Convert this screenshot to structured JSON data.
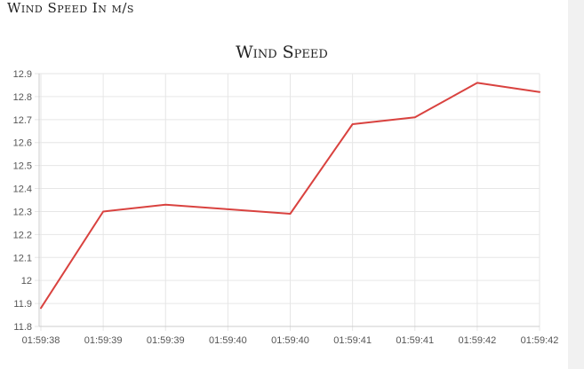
{
  "page": {
    "heading": "Wind Speed In m/s"
  },
  "chart_data": {
    "type": "line",
    "title": "Wind Speed",
    "xlabel": "",
    "ylabel": "",
    "x": [
      "01:59:38",
      "01:59:39",
      "01:59:39",
      "01:59:40",
      "01:59:40",
      "01:59:41",
      "01:59:41",
      "01:59:42",
      "01:59:42"
    ],
    "series": [
      {
        "values": [
          11.88,
          12.3,
          12.33,
          12.31,
          12.29,
          12.68,
          12.71,
          12.86,
          12.82
        ]
      }
    ],
    "ylim": [
      11.8,
      12.9
    ],
    "yticks": [
      "11.8",
      "11.9",
      "12",
      "12.1",
      "12.2",
      "12.3",
      "12.4",
      "12.5",
      "12.6",
      "12.7",
      "12.8",
      "12.9"
    ],
    "grid": true,
    "legend": "none",
    "colors": {
      "line": "#d9423f",
      "grid": "#e6e6e6",
      "tick_text": "#555555",
      "title_text": "#222222"
    }
  }
}
